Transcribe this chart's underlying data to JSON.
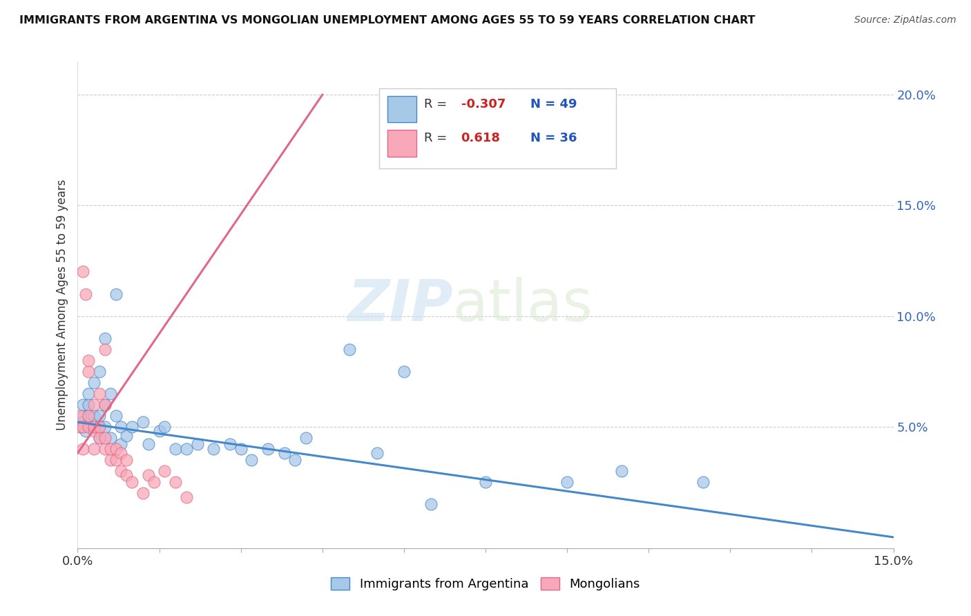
{
  "title": "IMMIGRANTS FROM ARGENTINA VS MONGOLIAN UNEMPLOYMENT AMONG AGES 55 TO 59 YEARS CORRELATION CHART",
  "source": "Source: ZipAtlas.com",
  "ylabel": "Unemployment Among Ages 55 to 59 years",
  "xlim": [
    0.0,
    0.15
  ],
  "ylim": [
    -0.005,
    0.215
  ],
  "xticks": [
    0.0,
    0.015,
    0.03,
    0.045,
    0.06,
    0.075,
    0.09,
    0.105,
    0.12,
    0.135,
    0.15
  ],
  "xtick_labels": [
    "0.0%",
    "",
    "",
    "",
    "",
    "",
    "",
    "",
    "",
    "",
    "15.0%"
  ],
  "ytick_positions": [
    0.0,
    0.05,
    0.1,
    0.15,
    0.2
  ],
  "ytick_labels": [
    "",
    "5.0%",
    "10.0%",
    "15.0%",
    "20.0%"
  ],
  "argentina_R": -0.307,
  "argentina_N": 49,
  "mongolian_R": 0.618,
  "mongolian_N": 36,
  "argentina_color": "#a8c8e8",
  "mongolian_color": "#f8a8b8",
  "argentina_line_color": "#4488cc",
  "mongolian_line_color": "#e06888",
  "watermark_zip": "ZIP",
  "watermark_atlas": "atlas",
  "argentina_x": [
    0.0005,
    0.001,
    0.001,
    0.001,
    0.0015,
    0.002,
    0.002,
    0.002,
    0.003,
    0.003,
    0.003,
    0.004,
    0.004,
    0.004,
    0.004,
    0.005,
    0.005,
    0.005,
    0.006,
    0.006,
    0.007,
    0.007,
    0.008,
    0.008,
    0.009,
    0.01,
    0.012,
    0.013,
    0.015,
    0.016,
    0.018,
    0.02,
    0.022,
    0.025,
    0.028,
    0.03,
    0.032,
    0.035,
    0.038,
    0.04,
    0.042,
    0.05,
    0.055,
    0.06,
    0.065,
    0.075,
    0.09,
    0.1,
    0.115
  ],
  "argentina_y": [
    0.05,
    0.055,
    0.052,
    0.06,
    0.048,
    0.055,
    0.06,
    0.065,
    0.05,
    0.055,
    0.07,
    0.045,
    0.05,
    0.055,
    0.075,
    0.05,
    0.06,
    0.09,
    0.045,
    0.065,
    0.055,
    0.11,
    0.05,
    0.042,
    0.046,
    0.05,
    0.052,
    0.042,
    0.048,
    0.05,
    0.04,
    0.04,
    0.042,
    0.04,
    0.042,
    0.04,
    0.035,
    0.04,
    0.038,
    0.035,
    0.045,
    0.085,
    0.038,
    0.075,
    0.015,
    0.025,
    0.025,
    0.03,
    0.025
  ],
  "mongolian_x": [
    0.0003,
    0.0005,
    0.001,
    0.001,
    0.001,
    0.0015,
    0.002,
    0.002,
    0.002,
    0.002,
    0.003,
    0.003,
    0.003,
    0.003,
    0.004,
    0.004,
    0.004,
    0.005,
    0.005,
    0.005,
    0.005,
    0.006,
    0.006,
    0.007,
    0.007,
    0.008,
    0.008,
    0.009,
    0.009,
    0.01,
    0.012,
    0.013,
    0.014,
    0.016,
    0.018,
    0.02
  ],
  "mongolian_y": [
    0.05,
    0.055,
    0.04,
    0.05,
    0.12,
    0.11,
    0.05,
    0.055,
    0.075,
    0.08,
    0.04,
    0.048,
    0.05,
    0.06,
    0.045,
    0.05,
    0.065,
    0.04,
    0.045,
    0.06,
    0.085,
    0.035,
    0.04,
    0.035,
    0.04,
    0.03,
    0.038,
    0.028,
    0.035,
    0.025,
    0.02,
    0.028,
    0.025,
    0.03,
    0.025,
    0.018
  ],
  "arg_line_x": [
    0.0,
    0.15
  ],
  "arg_line_y": [
    0.052,
    0.0
  ],
  "mon_line_x": [
    0.0,
    0.045
  ],
  "mon_line_y": [
    0.038,
    0.2
  ]
}
